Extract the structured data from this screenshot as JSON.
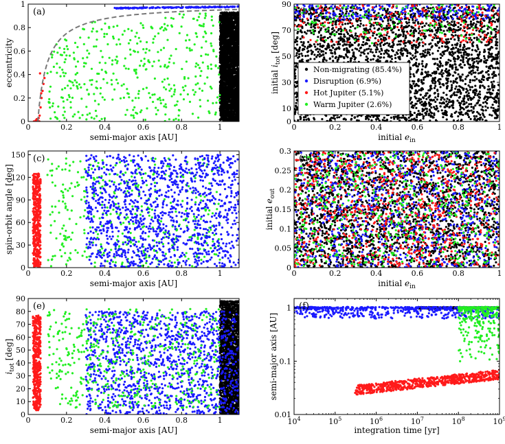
{
  "colors": {
    "Non-migrating": "#000000",
    "Disruption": "#1a1aff",
    "Hot Jupiter": "#ff1a1a",
    "Warm Jupiter": "#22ee22",
    "boundary": "#777777"
  },
  "legend": {
    "panel": "b",
    "placement": "lower-left",
    "entries": [
      {
        "key": "Non-migrating",
        "label": "Non-migrating (85.4%)"
      },
      {
        "key": "Disruption",
        "label": "Disruption (6.9%)"
      },
      {
        "key": "Hot Jupiter",
        "label": "Hot Jupiter (5.1%)"
      },
      {
        "key": "Warm Jupiter",
        "label": "Warm Jupiter (2.6%)"
      }
    ]
  },
  "chart_data": [
    {
      "id": "a",
      "panel_label": "(a)",
      "type": "scatter",
      "xlabel": "semi-major axis [AU]",
      "ylabel": "eccentricity",
      "xlim": [
        0,
        1.1
      ],
      "ylim": [
        0,
        1
      ],
      "xticks": [
        0,
        0.2,
        0.4,
        0.6,
        0.8,
        1
      ],
      "yticks": [
        0,
        0.2,
        0.4,
        0.6,
        0.8,
        1
      ],
      "xtick_labels": [
        "0",
        "0.2",
        "0.4",
        "0.6",
        "0.8",
        "1"
      ],
      "ytick_labels": [
        "0",
        "0.2",
        "0.4",
        "0.6",
        "0.8",
        "1"
      ],
      "grid": false,
      "curve": {
        "style": "dashed",
        "color_key": "boundary",
        "formula": "e = 1 - 0.05/a",
        "x_range": [
          0.05,
          1.1
        ]
      },
      "series": [
        {
          "key": "Non-migrating",
          "distribution": {
            "x": [
              1.0,
              1.1
            ],
            "y": [
              0.0,
              0.93
            ],
            "count": 2600
          }
        },
        {
          "key": "Disruption",
          "distribution": {
            "x": [
              0.45,
              1.1
            ],
            "y": [
              0.96,
              0.985
            ],
            "count": 170
          }
        },
        {
          "key": "Warm Jupiter",
          "distribution": {
            "x": [
              0.1,
              1.0
            ],
            "y": [
              0.0,
              0.93
            ],
            "count": 430
          }
        },
        {
          "key": "Hot Jupiter",
          "points": [
            {
              "x": 0.04,
              "y": 0.01
            },
            {
              "x": 0.045,
              "y": 0.02
            },
            {
              "x": 0.05,
              "y": 0.01
            },
            {
              "x": 0.055,
              "y": 0.03
            },
            {
              "x": 0.03,
              "y": 0.0
            },
            {
              "x": 0.06,
              "y": 0.05
            },
            {
              "x": 0.065,
              "y": 0.12
            },
            {
              "x": 0.07,
              "y": 0.2
            },
            {
              "x": 0.075,
              "y": 0.26
            },
            {
              "x": 0.08,
              "y": 0.32
            },
            {
              "x": 0.085,
              "y": 0.37
            },
            {
              "x": 0.062,
              "y": 0.41
            },
            {
              "x": 0.05,
              "y": 0.0
            },
            {
              "x": 0.042,
              "y": 0.0
            },
            {
              "x": 0.058,
              "y": 0.0
            },
            {
              "x": 0.068,
              "y": 0.24
            }
          ]
        }
      ]
    },
    {
      "id": "b",
      "panel_label": "(b)",
      "type": "scatter",
      "xlabel": "initial e_in",
      "ylabel": "initial i_tot [deg]",
      "xlim": [
        0,
        1
      ],
      "ylim": [
        0,
        90
      ],
      "xticks": [
        0,
        0.2,
        0.4,
        0.6,
        0.8,
        1
      ],
      "yticks": [
        0,
        10,
        30,
        50,
        70,
        90
      ],
      "xtick_labels": [
        "0",
        "0.2",
        "0.4",
        "0.6",
        "0.8",
        "1"
      ],
      "ytick_labels": [
        "0",
        "10",
        "30",
        "50",
        "70",
        "90"
      ],
      "grid": false,
      "series": [
        {
          "key": "Non-migrating",
          "distribution": {
            "x": [
              0.0,
              1.0
            ],
            "y": [
              0,
              88
            ],
            "count": 3000
          }
        },
        {
          "key": "Disruption",
          "distribution": {
            "x": [
              0.0,
              1.0
            ],
            "y": [
              78,
              90
            ],
            "count": 250
          }
        },
        {
          "key": "Hot Jupiter",
          "distribution": {
            "x": [
              0.0,
              1.0
            ],
            "y": [
              60,
              90
            ],
            "count": 200
          }
        },
        {
          "key": "Warm Jupiter",
          "distribution": {
            "x": [
              0.0,
              1.0
            ],
            "y": [
              60,
              90
            ],
            "count": 120
          }
        }
      ]
    },
    {
      "id": "c",
      "panel_label": "(c)",
      "type": "scatter",
      "xlabel": "semi-major axis [AU]",
      "ylabel": "spin-orbit angle [deg]",
      "xlim": [
        0,
        1.1
      ],
      "ylim": [
        0,
        155
      ],
      "xticks": [
        0,
        0.2,
        0.4,
        0.6,
        0.8,
        1
      ],
      "yticks": [
        0,
        30,
        60,
        90,
        120,
        150
      ],
      "xtick_labels": [
        "0",
        "0.2",
        "0.4",
        "0.6",
        "0.8",
        "1"
      ],
      "ytick_labels": [
        "0",
        "30",
        "60",
        "90",
        "120",
        "150"
      ],
      "grid": false,
      "series": [
        {
          "key": "Hot Jupiter",
          "distribution": {
            "x": [
              0.025,
              0.065
            ],
            "y": [
              0,
              125
            ],
            "count": 450
          }
        },
        {
          "key": "Warm Jupiter",
          "distribution": {
            "x": [
              0.1,
              1.0
            ],
            "y": [
              0,
              145
            ],
            "count": 420
          }
        },
        {
          "key": "Disruption",
          "distribution": {
            "x": [
              0.3,
              1.1
            ],
            "y": [
              0,
              150
            ],
            "count": 1300
          }
        }
      ]
    },
    {
      "id": "d",
      "panel_label": "(d)",
      "type": "scatter",
      "xlabel": "initial e_in",
      "ylabel": "initial e_out",
      "xlim": [
        0,
        1
      ],
      "ylim": [
        0,
        0.3
      ],
      "xticks": [
        0,
        0.2,
        0.4,
        0.6,
        0.8,
        1
      ],
      "yticks": [
        0,
        0.05,
        0.1,
        0.15,
        0.2,
        0.25,
        0.3
      ],
      "xtick_labels": [
        "0",
        "0.2",
        "0.4",
        "0.6",
        "0.8",
        "1"
      ],
      "ytick_labels": [
        "0",
        "0.05",
        "0.1",
        "0.15",
        "0.2",
        "0.25",
        "0.3"
      ],
      "grid": false,
      "series": [
        {
          "key": "Non-migrating",
          "distribution": {
            "x": [
              0.0,
              1.0
            ],
            "y": [
              0,
              0.3
            ],
            "count": 2200
          }
        },
        {
          "key": "Disruption",
          "distribution": {
            "x": [
              0.0,
              1.0
            ],
            "y": [
              0,
              0.3
            ],
            "count": 900
          }
        },
        {
          "key": "Hot Jupiter",
          "distribution": {
            "x": [
              0.0,
              1.0
            ],
            "y": [
              0,
              0.3
            ],
            "count": 800
          }
        },
        {
          "key": "Warm Jupiter",
          "distribution": {
            "x": [
              0.0,
              1.0
            ],
            "y": [
              0,
              0.3
            ],
            "count": 500
          }
        }
      ]
    },
    {
      "id": "e",
      "panel_label": "(e)",
      "type": "scatter",
      "xlabel": "semi-major axis [AU]",
      "ylabel": "i_tot [deg]",
      "xlim": [
        0,
        1.1
      ],
      "ylim": [
        0,
        90
      ],
      "xticks": [
        0,
        0.2,
        0.4,
        0.6,
        0.8,
        1
      ],
      "yticks": [
        0,
        10,
        20,
        30,
        40,
        50,
        60,
        70,
        80,
        90
      ],
      "xtick_labels": [
        "0",
        "0.2",
        "0.4",
        "0.6",
        "0.8",
        "1"
      ],
      "ytick_labels": [
        "0",
        "10",
        "20",
        "30",
        "40",
        "50",
        "60",
        "70",
        "80",
        "90"
      ],
      "grid": false,
      "series": [
        {
          "key": "Non-migrating",
          "distribution": {
            "x": [
              1.0,
              1.1
            ],
            "y": [
              0,
              88
            ],
            "count": 1800
          }
        },
        {
          "key": "Disruption",
          "distribution": {
            "x": [
              0.3,
              1.1
            ],
            "y": [
              0,
              80
            ],
            "count": 1300
          }
        },
        {
          "key": "Warm Jupiter",
          "distribution": {
            "x": [
              0.1,
              1.0
            ],
            "y": [
              5,
              82
            ],
            "count": 480
          }
        },
        {
          "key": "Hot Jupiter",
          "distribution": {
            "x": [
              0.025,
              0.065
            ],
            "y": [
              3,
              77
            ],
            "count": 450
          }
        }
      ]
    },
    {
      "id": "f",
      "panel_label": "(f)",
      "type": "scatter",
      "xlabel": "integration time [yr]",
      "ylabel": "semi-major axis [AU]",
      "xscale": "log",
      "yscale": "log",
      "xlim": [
        10000,
        1000000000
      ],
      "ylim": [
        0.01,
        1.5
      ],
      "xticks": [
        10000,
        100000,
        1000000,
        10000000,
        100000000,
        1000000000
      ],
      "xtick_labels": [
        "10^4",
        "10^5",
        "10^6",
        "10^7",
        "10^8",
        "10^9"
      ],
      "yticks": [
        0.01,
        0.1,
        1
      ],
      "ytick_labels": [
        "0.01",
        "0.1",
        "1"
      ],
      "grid": false,
      "series": [
        {
          "key": "Non-migrating",
          "distribution": {
            "x": [
              10000000,
              1000000000
            ],
            "y": [
              0.97,
              1.03
            ],
            "count": 600
          }
        },
        {
          "key": "Disruption",
          "distribution": {
            "x": [
              10000,
              1000000000
            ],
            "y": [
              0.6,
              1.1
            ],
            "count": 600
          }
        },
        {
          "key": "Warm Jupiter",
          "distribution": {
            "x": [
              100000000,
              1000000000
            ],
            "y": [
              0.1,
              1.1
            ],
            "count": 350
          }
        },
        {
          "key": "Hot Jupiter",
          "distribution": {
            "x": [
              300000,
              1000000000
            ],
            "y": [
              0.025,
              0.07
            ],
            "count": 700
          }
        }
      ]
    }
  ]
}
